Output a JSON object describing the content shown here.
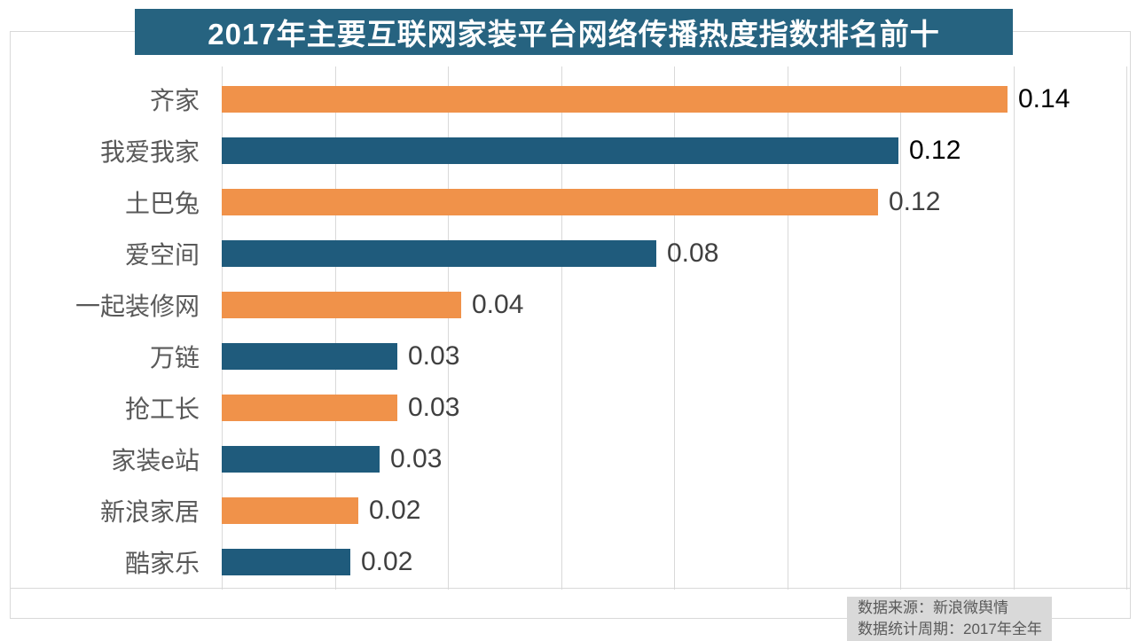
{
  "chart_data": {
    "type": "bar",
    "orientation": "horizontal",
    "title": "2017年主要互联网家装平台网络传播热度指数排名前十",
    "categories": [
      "齐家",
      "我爱我家",
      "土巴兔",
      "爱空间",
      "一起装修网",
      "万链",
      "抢工长",
      "家装e站",
      "新浪家居",
      "酷家乐"
    ],
    "values": [
      0.14,
      0.12,
      0.12,
      0.08,
      0.04,
      0.03,
      0.03,
      0.03,
      0.02,
      0.02
    ],
    "value_labels": [
      "0.14",
      "0.12",
      "0.12",
      "0.08",
      "0.04",
      "0.03",
      "0.03",
      "0.03",
      "0.02",
      "0.02"
    ],
    "precise_values": [
      0.139,
      0.1197,
      0.116,
      0.0769,
      0.0424,
      0.031,
      0.031,
      0.0279,
      0.0242,
      0.0227
    ],
    "xlim": [
      0,
      0.16
    ],
    "gridline_step": 0.02,
    "grid": true,
    "legend_position": "none",
    "xlabel": "",
    "ylabel": "",
    "bar_colors": [
      "#F0924A",
      "#1F5B7C",
      "#F0924A",
      "#1F5B7C",
      "#F0924A",
      "#1F5B7C",
      "#F0924A",
      "#1F5B7C",
      "#F0924A",
      "#1F5B7C"
    ],
    "value_label_colors": [
      "#000000",
      "#000000",
      "#404040",
      "#404040",
      "#404040",
      "#404040",
      "#404040",
      "#404040",
      "#404040",
      "#404040"
    ]
  },
  "colors": {
    "title_bg": "#266380",
    "title_text": "#FFFFFF",
    "series_orange": "#F0924A",
    "series_blue": "#1F5B7C",
    "grid": "#D9D9D9",
    "frame_border": "#D9D9D9",
    "category_label": "#595959",
    "footer_bg": "#D9D9D9",
    "footer_text": "#595959"
  },
  "footer": {
    "source": "数据来源：新浪微舆情",
    "period": "数据统计周期：2017年全年"
  }
}
